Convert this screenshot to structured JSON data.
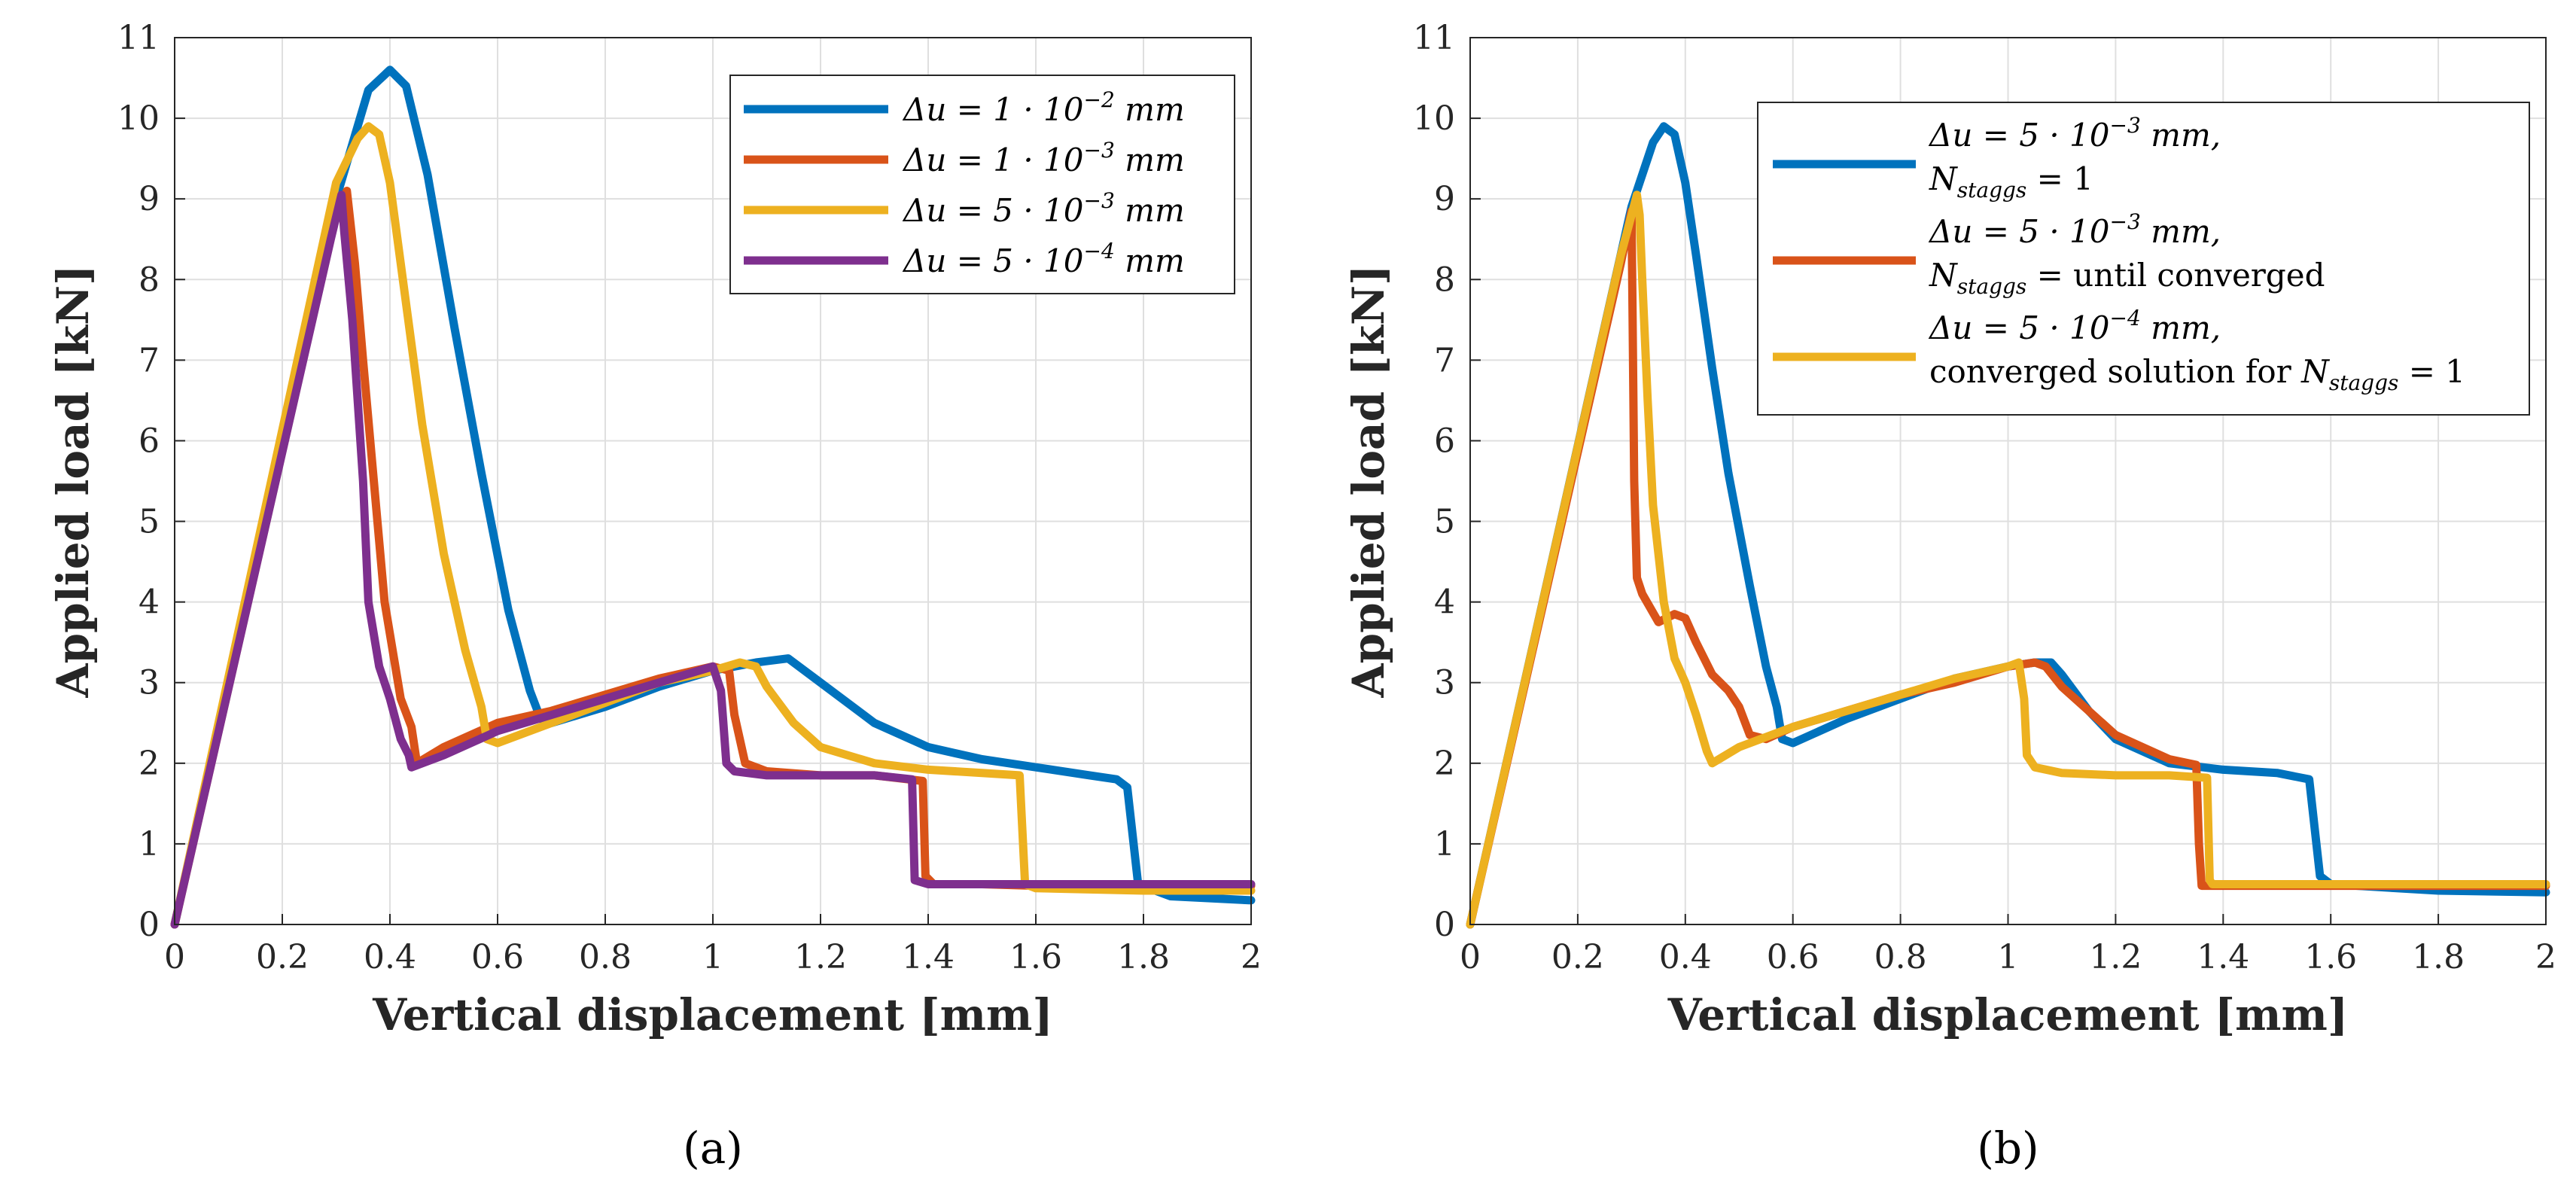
{
  "chart_data": [
    {
      "type": "line",
      "panel_label": "(a)",
      "xlabel": "Vertical displacement [mm]",
      "ylabel": "Applied load [kN]",
      "xlim": [
        0,
        2
      ],
      "ylim": [
        0,
        11
      ],
      "xticks": [
        "0",
        "0.2",
        "0.4",
        "0.6",
        "0.8",
        "1",
        "1.2",
        "1.4",
        "1.6",
        "1.8",
        "2"
      ],
      "yticks": [
        "0",
        "1",
        "2",
        "3",
        "4",
        "5",
        "6",
        "7",
        "8",
        "9",
        "10",
        "11"
      ],
      "grid": true,
      "legend_position": "top-right",
      "legend": [
        {
          "delta": "Δu = 1 · 10",
          "exp": "−2",
          "unit": " mm"
        },
        {
          "delta": "Δu = 1 · 10",
          "exp": "−3",
          "unit": " mm"
        },
        {
          "delta": "Δu = 5 · 10",
          "exp": "−3",
          "unit": " mm"
        },
        {
          "delta": "Δu = 5 · 10",
          "exp": "−4",
          "unit": " mm"
        }
      ],
      "series": [
        {
          "color": "#0072BD",
          "x": [
            0,
            0.3,
            0.36,
            0.4,
            0.43,
            0.47,
            0.52,
            0.57,
            0.62,
            0.66,
            0.68,
            0.7,
            0.8,
            0.9,
            1.0,
            1.08,
            1.14,
            1.2,
            1.3,
            1.4,
            1.5,
            1.6,
            1.7,
            1.75,
            1.77,
            1.79,
            1.85,
            2.0
          ],
          "y": [
            0,
            9.0,
            10.35,
            10.6,
            10.4,
            9.3,
            7.4,
            5.6,
            3.9,
            2.9,
            2.55,
            2.5,
            2.7,
            2.95,
            3.15,
            3.25,
            3.3,
            3.0,
            2.5,
            2.2,
            2.05,
            1.95,
            1.85,
            1.8,
            1.7,
            0.5,
            0.35,
            0.3
          ]
        },
        {
          "color": "#D95319",
          "x": [
            0,
            0.3,
            0.32,
            0.335,
            0.35,
            0.37,
            0.39,
            0.42,
            0.44,
            0.45,
            0.5,
            0.6,
            0.7,
            0.8,
            0.9,
            1.0,
            1.03,
            1.04,
            1.06,
            1.1,
            1.2,
            1.3,
            1.39,
            1.395,
            1.41,
            1.5,
            1.6,
            1.8,
            2.0
          ],
          "y": [
            0,
            8.8,
            9.1,
            8.2,
            7.0,
            5.5,
            4.0,
            2.8,
            2.45,
            2.0,
            2.2,
            2.5,
            2.65,
            2.85,
            3.05,
            3.2,
            3.15,
            2.6,
            2.0,
            1.9,
            1.85,
            1.85,
            1.78,
            0.6,
            0.5,
            0.5,
            0.48,
            0.48,
            0.48
          ]
        },
        {
          "color": "#EDB120",
          "x": [
            0,
            0.3,
            0.34,
            0.36,
            0.38,
            0.4,
            0.42,
            0.46,
            0.5,
            0.54,
            0.57,
            0.58,
            0.6,
            0.7,
            0.8,
            0.9,
            1.0,
            1.05,
            1.08,
            1.1,
            1.15,
            1.2,
            1.3,
            1.4,
            1.5,
            1.57,
            1.58,
            1.6,
            1.8,
            2.0
          ],
          "y": [
            0,
            9.2,
            9.75,
            9.9,
            9.8,
            9.2,
            8.2,
            6.2,
            4.6,
            3.4,
            2.7,
            2.3,
            2.25,
            2.5,
            2.75,
            3.0,
            3.15,
            3.25,
            3.2,
            2.95,
            2.5,
            2.2,
            2.0,
            1.92,
            1.88,
            1.85,
            0.5,
            0.45,
            0.42,
            0.42
          ]
        },
        {
          "color": "#7E2F8E",
          "x": [
            0,
            0.29,
            0.31,
            0.315,
            0.33,
            0.35,
            0.36,
            0.38,
            0.4,
            0.42,
            0.435,
            0.44,
            0.5,
            0.6,
            0.7,
            0.8,
            0.9,
            1.0,
            1.015,
            1.025,
            1.04,
            1.1,
            1.2,
            1.3,
            1.37,
            1.375,
            1.4,
            1.5,
            1.6,
            1.8,
            2.0
          ],
          "y": [
            0,
            8.5,
            9.05,
            8.6,
            7.5,
            5.5,
            4.0,
            3.2,
            2.8,
            2.3,
            2.1,
            1.95,
            2.1,
            2.4,
            2.6,
            2.8,
            3.0,
            3.2,
            2.9,
            2.0,
            1.9,
            1.85,
            1.85,
            1.85,
            1.8,
            0.55,
            0.5,
            0.5,
            0.5,
            0.5,
            0.5
          ]
        }
      ]
    },
    {
      "type": "line",
      "panel_label": "(b)",
      "xlabel": "Vertical displacement [mm]",
      "ylabel": "Applied load [kN]",
      "xlim": [
        0,
        2
      ],
      "ylim": [
        0,
        11
      ],
      "xticks": [
        "0",
        "0.2",
        "0.4",
        "0.6",
        "0.8",
        "1",
        "1.2",
        "1.4",
        "1.6",
        "1.8",
        "2"
      ],
      "yticks": [
        "0",
        "1",
        "2",
        "3",
        "4",
        "5",
        "6",
        "7",
        "8",
        "9",
        "10",
        "11"
      ],
      "grid": true,
      "legend_position": "top-right",
      "legend": [
        {
          "l1_delta": "Δu = 5 · 10",
          "l1_exp": "−3",
          "l1_unit": " mm,",
          "l2_pre": "",
          "l2_n": "N",
          "l2_sub": "staggs",
          "l2_post": " = 1"
        },
        {
          "l1_delta": "Δu = 5 · 10",
          "l1_exp": "−3",
          "l1_unit": " mm,",
          "l2_pre": "",
          "l2_n": "N",
          "l2_sub": "staggs",
          "l2_post": " = until converged"
        },
        {
          "l1_delta": "Δu = 5 · 10",
          "l1_exp": "−4",
          "l1_unit": " mm,",
          "l2_pre": "converged solution for ",
          "l2_n": "N",
          "l2_sub": "staggs",
          "l2_post": " = 1"
        }
      ],
      "series": [
        {
          "color": "#0072BD",
          "x": [
            0,
            0.3,
            0.34,
            0.36,
            0.38,
            0.4,
            0.42,
            0.45,
            0.48,
            0.52,
            0.55,
            0.57,
            0.58,
            0.6,
            0.7,
            0.8,
            0.9,
            1.0,
            1.05,
            1.08,
            1.1,
            1.15,
            1.2,
            1.3,
            1.4,
            1.5,
            1.56,
            1.58,
            1.6,
            1.8,
            2.0
          ],
          "y": [
            0,
            8.9,
            9.7,
            9.9,
            9.8,
            9.2,
            8.3,
            6.9,
            5.6,
            4.2,
            3.2,
            2.7,
            2.3,
            2.25,
            2.55,
            2.8,
            3.05,
            3.2,
            3.25,
            3.25,
            3.1,
            2.65,
            2.3,
            2.0,
            1.92,
            1.88,
            1.8,
            0.6,
            0.5,
            0.42,
            0.4
          ]
        },
        {
          "color": "#D95319",
          "x": [
            0,
            0.28,
            0.3,
            0.302,
            0.305,
            0.31,
            0.32,
            0.35,
            0.38,
            0.4,
            0.42,
            0.45,
            0.48,
            0.5,
            0.52,
            0.55,
            0.6,
            0.7,
            0.8,
            0.9,
            1.0,
            1.05,
            1.07,
            1.1,
            1.2,
            1.3,
            1.35,
            1.355,
            1.36,
            1.4,
            1.6,
            1.8,
            2.0
          ],
          "y": [
            0,
            8.2,
            8.85,
            7.5,
            5.5,
            4.3,
            4.1,
            3.75,
            3.85,
            3.8,
            3.5,
            3.1,
            2.9,
            2.7,
            2.35,
            2.3,
            2.45,
            2.65,
            2.85,
            3.0,
            3.2,
            3.25,
            3.2,
            2.95,
            2.35,
            2.05,
            1.98,
            1.0,
            0.48,
            0.48,
            0.48,
            0.48,
            0.48
          ]
        },
        {
          "color": "#EDB120",
          "x": [
            0,
            0.28,
            0.31,
            0.315,
            0.32,
            0.33,
            0.34,
            0.36,
            0.38,
            0.4,
            0.42,
            0.44,
            0.45,
            0.5,
            0.6,
            0.7,
            0.8,
            0.9,
            1.0,
            1.02,
            1.03,
            1.035,
            1.05,
            1.1,
            1.2,
            1.3,
            1.37,
            1.375,
            1.38,
            1.4,
            1.6,
            1.8,
            2.0
          ],
          "y": [
            0,
            8.3,
            9.05,
            8.8,
            8.0,
            6.5,
            5.2,
            4.0,
            3.3,
            3.0,
            2.6,
            2.15,
            2.0,
            2.2,
            2.45,
            2.65,
            2.85,
            3.05,
            3.2,
            3.25,
            2.8,
            2.1,
            1.95,
            1.88,
            1.85,
            1.85,
            1.82,
            0.55,
            0.5,
            0.5,
            0.5,
            0.5,
            0.5
          ]
        }
      ]
    }
  ]
}
